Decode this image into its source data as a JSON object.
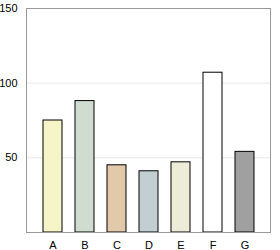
{
  "chart_data": {
    "type": "bar",
    "categories": [
      "A",
      "B",
      "C",
      "D",
      "E",
      "F",
      "G"
    ],
    "values": [
      75,
      88,
      45,
      41,
      47,
      107,
      54
    ],
    "colors": [
      "#f5f5c8",
      "#d0dcd0",
      "#e2c9aa",
      "#c2ced2",
      "#ececd8",
      "#ffffff",
      "#a0a0a0"
    ],
    "ylim": [
      0,
      150
    ],
    "yticks": [
      50,
      100,
      150
    ],
    "grid": true
  }
}
